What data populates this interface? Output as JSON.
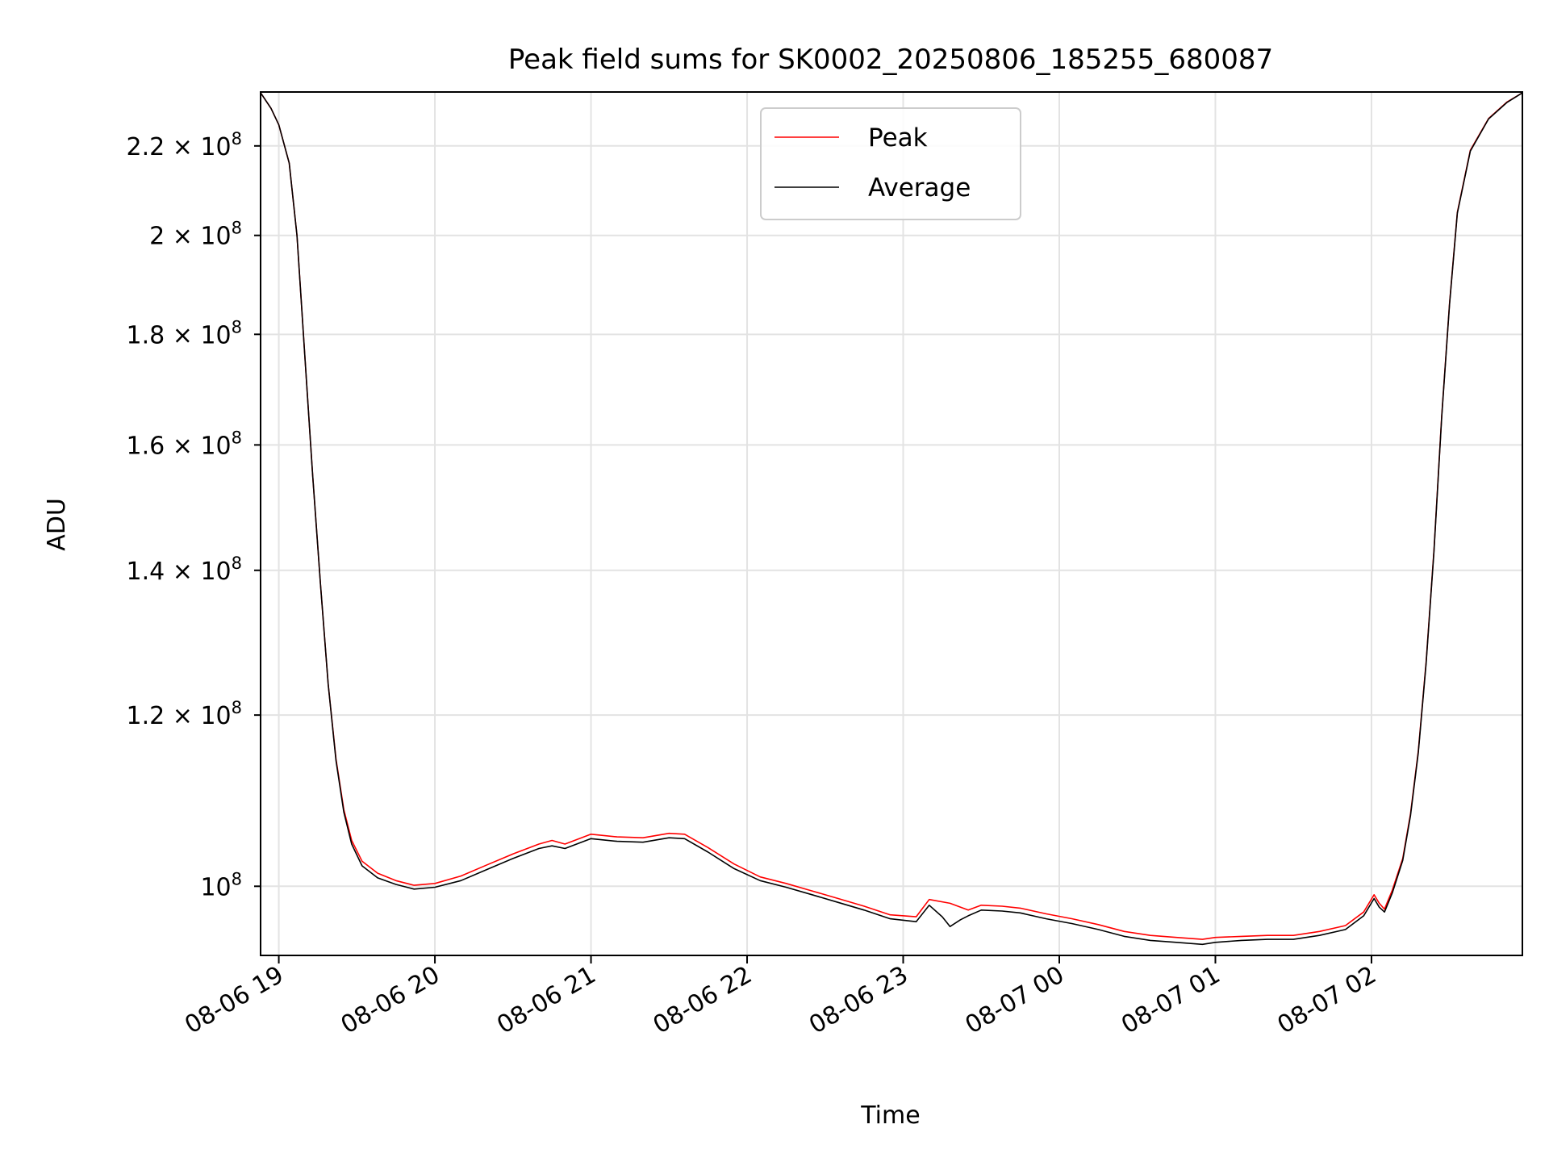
{
  "chart_data": {
    "type": "line",
    "title": "Peak field sums for SK0002_20250806_185255_680087",
    "xlabel": "Time",
    "ylabel": "ADU",
    "y_scale": "log",
    "grid": true,
    "legend_position": "top-center",
    "x_ticks": [
      {
        "value": "2025-08-06 19:00",
        "label": "08-06 19"
      },
      {
        "value": "2025-08-06 20:00",
        "label": "08-06 20"
      },
      {
        "value": "2025-08-06 21:00",
        "label": "08-06 21"
      },
      {
        "value": "2025-08-06 22:00",
        "label": "08-06 22"
      },
      {
        "value": "2025-08-06 23:00",
        "label": "08-06 23"
      },
      {
        "value": "2025-08-07 00:00",
        "label": "08-07 00"
      },
      {
        "value": "2025-08-07 01:00",
        "label": "08-07 01"
      },
      {
        "value": "2025-08-07 02:00",
        "label": "08-07 02"
      }
    ],
    "y_ticks": [
      {
        "value": 100000000,
        "mant": "",
        "base": "10",
        "exp": "8"
      },
      {
        "value": 120000000,
        "mant": "1.2",
        "base": "10",
        "exp": "8"
      },
      {
        "value": 140000000,
        "mant": "1.4",
        "base": "10",
        "exp": "8"
      },
      {
        "value": 160000000,
        "mant": "1.6",
        "base": "10",
        "exp": "8"
      },
      {
        "value": 180000000,
        "mant": "1.8",
        "base": "10",
        "exp": "8"
      },
      {
        "value": 200000000,
        "mant": "2",
        "base": "10",
        "exp": "8"
      },
      {
        "value": 220000000,
        "mant": "2.2",
        "base": "10",
        "exp": "8"
      }
    ],
    "xlim": [
      "2025-08-06 18:53",
      "2025-08-07 02:58"
    ],
    "ylim": [
      92900000,
      233000000
    ],
    "series": [
      {
        "name": "Peak",
        "color": "#ff0000",
        "points": [
          [
            "2025-08-06 18:53",
            232800000
          ],
          [
            "2025-08-06 18:57",
            229000000
          ],
          [
            "2025-08-06 19:00",
            225000000
          ],
          [
            "2025-08-06 19:04",
            216000000
          ],
          [
            "2025-08-06 19:07",
            200000000
          ],
          [
            "2025-08-06 19:10",
            176000000
          ],
          [
            "2025-08-06 19:13",
            155000000
          ],
          [
            "2025-08-06 19:16",
            138000000
          ],
          [
            "2025-08-06 19:19",
            124000000
          ],
          [
            "2025-08-06 19:22",
            114500000
          ],
          [
            "2025-08-06 19:25",
            108500000
          ],
          [
            "2025-08-06 19:28",
            105000000
          ],
          [
            "2025-08-06 19:32",
            102700000
          ],
          [
            "2025-08-06 19:38",
            101400000
          ],
          [
            "2025-08-06 19:45",
            100600000
          ],
          [
            "2025-08-06 19:52",
            100100000
          ],
          [
            "2025-08-06 20:00",
            100300000
          ],
          [
            "2025-08-06 20:10",
            101100000
          ],
          [
            "2025-08-06 20:20",
            102300000
          ],
          [
            "2025-08-06 20:30",
            103500000
          ],
          [
            "2025-08-06 20:40",
            104600000
          ],
          [
            "2025-08-06 20:45",
            105000000
          ],
          [
            "2025-08-06 20:50",
            104600000
          ],
          [
            "2025-08-06 21:00",
            105700000
          ],
          [
            "2025-08-06 21:10",
            105400000
          ],
          [
            "2025-08-06 21:20",
            105300000
          ],
          [
            "2025-08-06 21:30",
            105800000
          ],
          [
            "2025-08-06 21:36",
            105700000
          ],
          [
            "2025-08-06 21:45",
            104200000
          ],
          [
            "2025-08-06 21:55",
            102400000
          ],
          [
            "2025-08-06 22:05",
            101000000
          ],
          [
            "2025-08-06 22:15",
            100300000
          ],
          [
            "2025-08-06 22:25",
            99500000
          ],
          [
            "2025-08-06 22:35",
            98700000
          ],
          [
            "2025-08-06 22:45",
            97900000
          ],
          [
            "2025-08-06 22:55",
            97000000
          ],
          [
            "2025-08-06 23:05",
            96800000
          ],
          [
            "2025-08-06 23:10",
            98600000
          ],
          [
            "2025-08-06 23:18",
            98200000
          ],
          [
            "2025-08-06 23:25",
            97500000
          ],
          [
            "2025-08-06 23:30",
            98000000
          ],
          [
            "2025-08-06 23:38",
            97900000
          ],
          [
            "2025-08-06 23:45",
            97700000
          ],
          [
            "2025-08-06 23:55",
            97100000
          ],
          [
            "2025-08-07 00:05",
            96600000
          ],
          [
            "2025-08-07 00:15",
            96000000
          ],
          [
            "2025-08-07 00:25",
            95300000
          ],
          [
            "2025-08-07 00:35",
            94900000
          ],
          [
            "2025-08-07 00:45",
            94700000
          ],
          [
            "2025-08-07 00:55",
            94500000
          ],
          [
            "2025-08-07 01:00",
            94700000
          ],
          [
            "2025-08-07 01:10",
            94800000
          ],
          [
            "2025-08-07 01:20",
            94900000
          ],
          [
            "2025-08-07 01:30",
            94900000
          ],
          [
            "2025-08-07 01:40",
            95300000
          ],
          [
            "2025-08-07 01:50",
            95900000
          ],
          [
            "2025-08-07 01:57",
            97300000
          ],
          [
            "2025-08-07 02:01",
            99100000
          ],
          [
            "2025-08-07 02:03",
            98200000
          ],
          [
            "2025-08-07 02:05",
            97600000
          ],
          [
            "2025-08-07 02:08",
            99600000
          ],
          [
            "2025-08-07 02:12",
            103000000
          ],
          [
            "2025-08-07 02:15",
            108000000
          ],
          [
            "2025-08-07 02:18",
            115500000
          ],
          [
            "2025-08-07 02:21",
            127000000
          ],
          [
            "2025-08-07 02:24",
            143000000
          ],
          [
            "2025-08-07 02:27",
            165000000
          ],
          [
            "2025-08-07 02:30",
            186000000
          ],
          [
            "2025-08-07 02:33",
            205000000
          ],
          [
            "2025-08-07 02:38",
            219000000
          ],
          [
            "2025-08-07 02:45",
            226500000
          ],
          [
            "2025-08-07 02:52",
            230500000
          ],
          [
            "2025-08-07 02:58",
            232800000
          ]
        ]
      },
      {
        "name": "Average",
        "color": "#000000",
        "points": [
          [
            "2025-08-06 18:53",
            232800000
          ],
          [
            "2025-08-06 18:57",
            229000000
          ],
          [
            "2025-08-06 19:00",
            225000000
          ],
          [
            "2025-08-06 19:04",
            216000000
          ],
          [
            "2025-08-06 19:07",
            200000000
          ],
          [
            "2025-08-06 19:10",
            176000000
          ],
          [
            "2025-08-06 19:13",
            155000000
          ],
          [
            "2025-08-06 19:16",
            138000000
          ],
          [
            "2025-08-06 19:19",
            124000000
          ],
          [
            "2025-08-06 19:22",
            114300000
          ],
          [
            "2025-08-06 19:25",
            108200000
          ],
          [
            "2025-08-06 19:28",
            104600000
          ],
          [
            "2025-08-06 19:32",
            102200000
          ],
          [
            "2025-08-06 19:38",
            100900000
          ],
          [
            "2025-08-06 19:45",
            100200000
          ],
          [
            "2025-08-06 19:52",
            99700000
          ],
          [
            "2025-08-06 20:00",
            99900000
          ],
          [
            "2025-08-06 20:10",
            100600000
          ],
          [
            "2025-08-06 20:20",
            101800000
          ],
          [
            "2025-08-06 20:30",
            103000000
          ],
          [
            "2025-08-06 20:40",
            104100000
          ],
          [
            "2025-08-06 20:45",
            104400000
          ],
          [
            "2025-08-06 20:50",
            104100000
          ],
          [
            "2025-08-06 21:00",
            105200000
          ],
          [
            "2025-08-06 21:10",
            104900000
          ],
          [
            "2025-08-06 21:20",
            104800000
          ],
          [
            "2025-08-06 21:30",
            105300000
          ],
          [
            "2025-08-06 21:36",
            105200000
          ],
          [
            "2025-08-06 21:45",
            103700000
          ],
          [
            "2025-08-06 21:55",
            101900000
          ],
          [
            "2025-08-06 22:05",
            100600000
          ],
          [
            "2025-08-06 22:15",
            99900000
          ],
          [
            "2025-08-06 22:25",
            99100000
          ],
          [
            "2025-08-06 22:35",
            98300000
          ],
          [
            "2025-08-06 22:45",
            97500000
          ],
          [
            "2025-08-06 22:55",
            96600000
          ],
          [
            "2025-08-06 23:05",
            96300000
          ],
          [
            "2025-08-06 23:10",
            98000000
          ],
          [
            "2025-08-06 23:15",
            96800000
          ],
          [
            "2025-08-06 23:18",
            95800000
          ],
          [
            "2025-08-06 23:22",
            96500000
          ],
          [
            "2025-08-06 23:25",
            96900000
          ],
          [
            "2025-08-06 23:30",
            97500000
          ],
          [
            "2025-08-06 23:38",
            97400000
          ],
          [
            "2025-08-06 23:45",
            97200000
          ],
          [
            "2025-08-06 23:55",
            96600000
          ],
          [
            "2025-08-07 00:05",
            96100000
          ],
          [
            "2025-08-07 00:15",
            95500000
          ],
          [
            "2025-08-07 00:25",
            94800000
          ],
          [
            "2025-08-07 00:35",
            94400000
          ],
          [
            "2025-08-07 00:45",
            94200000
          ],
          [
            "2025-08-07 00:55",
            94000000
          ],
          [
            "2025-08-07 01:00",
            94200000
          ],
          [
            "2025-08-07 01:10",
            94400000
          ],
          [
            "2025-08-07 01:20",
            94500000
          ],
          [
            "2025-08-07 01:30",
            94500000
          ],
          [
            "2025-08-07 01:40",
            94900000
          ],
          [
            "2025-08-07 01:50",
            95500000
          ],
          [
            "2025-08-07 01:57",
            96900000
          ],
          [
            "2025-08-07 02:01",
            98700000
          ],
          [
            "2025-08-07 02:03",
            97800000
          ],
          [
            "2025-08-07 02:05",
            97300000
          ],
          [
            "2025-08-07 02:08",
            99300000
          ],
          [
            "2025-08-07 02:12",
            102800000
          ],
          [
            "2025-08-07 02:15",
            107800000
          ],
          [
            "2025-08-07 02:18",
            115300000
          ],
          [
            "2025-08-07 02:21",
            126800000
          ],
          [
            "2025-08-07 02:24",
            142800000
          ],
          [
            "2025-08-07 02:27",
            164800000
          ],
          [
            "2025-08-07 02:30",
            185800000
          ],
          [
            "2025-08-07 02:33",
            204800000
          ],
          [
            "2025-08-07 02:38",
            218800000
          ],
          [
            "2025-08-07 02:45",
            226400000
          ],
          [
            "2025-08-07 02:52",
            230400000
          ],
          [
            "2025-08-07 02:58",
            232800000
          ]
        ]
      }
    ]
  }
}
